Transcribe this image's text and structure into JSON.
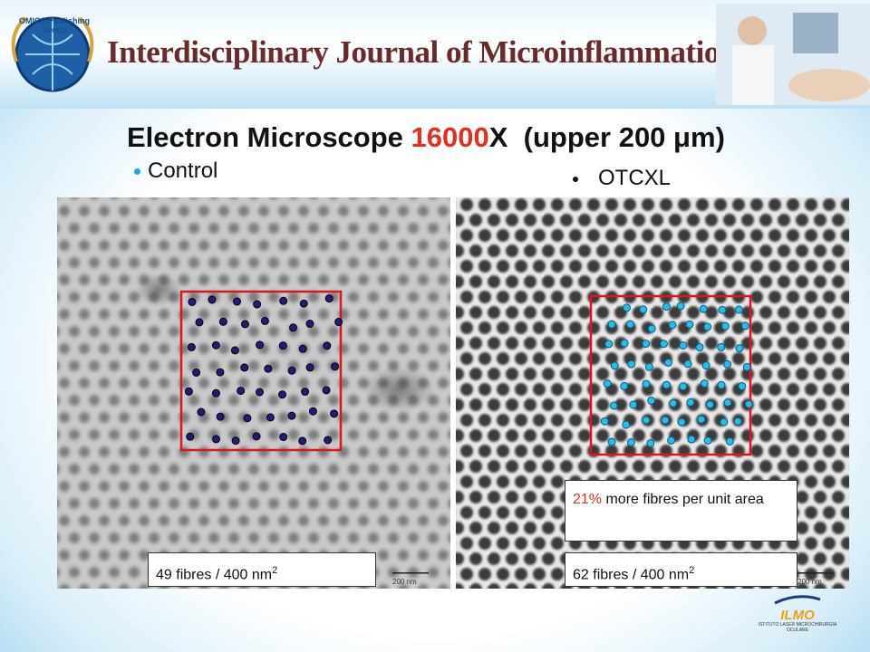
{
  "header": {
    "publisher": "OMICS Publishing Group",
    "journal": "Interdisciplinary Journal of Microinflammation"
  },
  "title": {
    "part1": "Electron Microscope ",
    "magnification": "16000",
    "part2": "X  (upper 200 μm)"
  },
  "panels": [
    {
      "label": "Control",
      "count_text": "49 fibres / 400 nm",
      "superscript": "2",
      "scale": "200 nm"
    },
    {
      "label": "OTCXL",
      "count_text": "62 fibres / 400 nm",
      "superscript": "2",
      "scale": "200 nm"
    }
  ],
  "callout": {
    "highlight": "21%",
    "text": " more fibres per unit area"
  },
  "footer_logo": {
    "name": "ILMO",
    "subtitle": "ISTITUTO LASER MICROCHIRURGIA OCULARE"
  }
}
